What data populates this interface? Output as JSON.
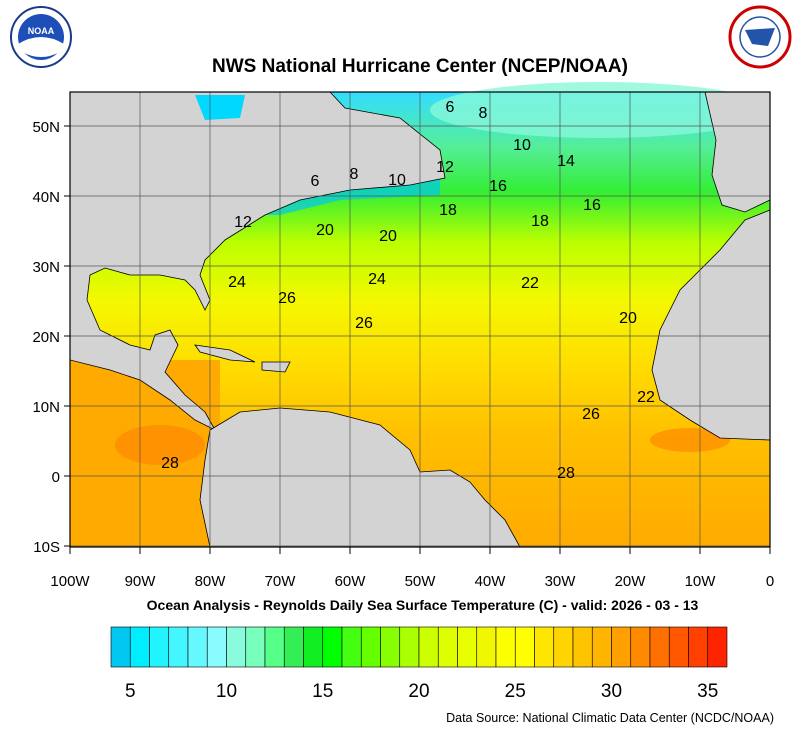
{
  "title": "NWS National Hurricane Center (NCEP/NOAA)",
  "subtitle": "Ocean Analysis - Reynolds Daily Sea Surface Temperature (C) - valid: 2026 - 03 - 13",
  "source": "Data Source: National Climatic Data Center (NCDC/NOAA)",
  "logos": {
    "left": "NOAA",
    "right": "NATIONAL WEATHER SERVICE"
  },
  "map": {
    "lat_labels": [
      "50N",
      "40N",
      "30N",
      "20N",
      "10N",
      "0",
      "10S"
    ],
    "lon_labels": [
      "100W",
      "90W",
      "80W",
      "70W",
      "60W",
      "50W",
      "40W",
      "30W",
      "20W",
      "10W",
      "0"
    ],
    "land_color": "#d3d3d3",
    "contour_labels": [
      "6",
      "8",
      "10",
      "14",
      "12",
      "16",
      "16",
      "18",
      "18",
      "6",
      "8",
      "10",
      "12",
      "20",
      "20",
      "24",
      "24",
      "26",
      "26",
      "22",
      "20",
      "22",
      "26",
      "28",
      "28"
    ]
  },
  "colorbar": {
    "labels": [
      "5",
      "10",
      "15",
      "20",
      "25",
      "30",
      "35"
    ],
    "colors": [
      "#00c8f0",
      "#00ecff",
      "#22f4ff",
      "#44f6ff",
      "#66f8ff",
      "#88fcff",
      "#88fcdd",
      "#77ffbb",
      "#55ff88",
      "#33ee55",
      "#11ee22",
      "#00ff00",
      "#44ff11",
      "#66ff00",
      "#88ff00",
      "#aaff00",
      "#ccff00",
      "#ddff00",
      "#e8ff00",
      "#f0f700",
      "#fbff00",
      "#ffff00",
      "#ffe600",
      "#ffd400",
      "#ffc400",
      "#ffb400",
      "#ffa000",
      "#ff8a00",
      "#ff7000",
      "#ff5800",
      "#ff4000",
      "#ff2400"
    ]
  }
}
